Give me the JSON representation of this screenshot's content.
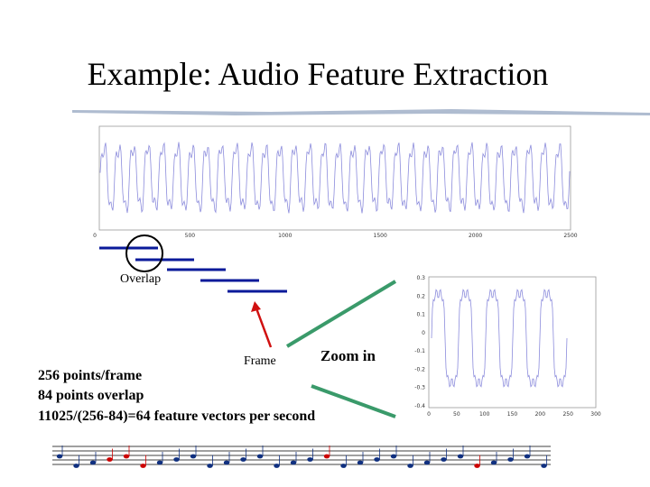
{
  "header": {
    "title": "Example: Audio Feature Extraction"
  },
  "waveform_plot": {
    "x_tick_labels": [
      0,
      500,
      1000,
      1500,
      2000,
      2500
    ]
  },
  "frames": {
    "overlap_label": "Overlap",
    "frame_label": "Frame",
    "zoom_label": "Zoom in"
  },
  "zoom_plot": {
    "y_tick_labels": [
      0.3,
      0.2,
      0.1,
      0,
      -0.1,
      -0.2,
      -0.3,
      -0.4
    ],
    "x_tick_labels": [
      0,
      50,
      100,
      150,
      200,
      250,
      300
    ]
  },
  "notes": {
    "lines": [
      "256 points/frame",
      "84 points overlap",
      "11025/(256-84)=64 feature vectors per second"
    ]
  }
}
